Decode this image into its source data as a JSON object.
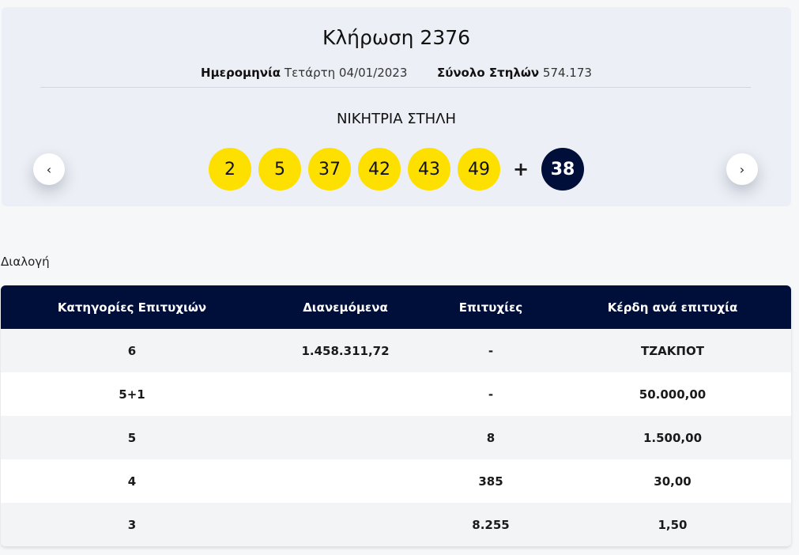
{
  "draw": {
    "title": "Κλήρωση 2376",
    "date_label": "Ημερομηνία",
    "date_value": "Τετάρτη 04/01/2023",
    "total_label": "Σύνολο Στηλών",
    "total_value": "574.173",
    "winning_label": "ΝΙΚΗΤΡΙΑ ΣΤΗΛΗ",
    "numbers": [
      "2",
      "5",
      "37",
      "42",
      "43",
      "49"
    ],
    "plus": "+",
    "bonus": "38",
    "prev_icon": "‹",
    "next_icon": "›"
  },
  "colors": {
    "ball": "#fde000",
    "bonus": "#000f3a",
    "header": "#000f3a"
  },
  "section_label": "Διαλογή",
  "table": {
    "headers": [
      "Κατηγορίες Επιτυχιών",
      "Διανεμόμενα",
      "Επιτυχίες",
      "Κέρδη ανά επιτυχία"
    ],
    "rows": [
      [
        "6",
        "1.458.311,72",
        "-",
        "ΤΖΑΚΠΟΤ"
      ],
      [
        "5+1",
        "",
        "-",
        "50.000,00"
      ],
      [
        "5",
        "",
        "8",
        "1.500,00"
      ],
      [
        "4",
        "",
        "385",
        "30,00"
      ],
      [
        "3",
        "",
        "8.255",
        "1,50"
      ]
    ]
  }
}
